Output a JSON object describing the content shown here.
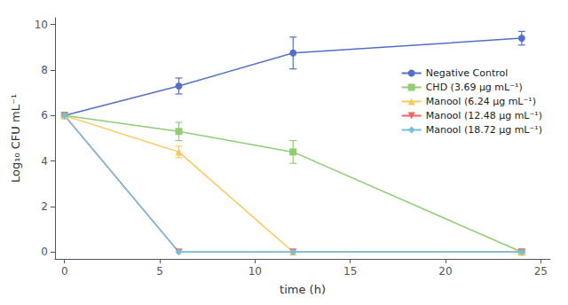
{
  "chart_data": {
    "type": "line",
    "xlabel": "time (h)",
    "ylabel": "Log₁₀ CFU mL⁻¹",
    "xlim": [
      -0.5,
      25.5
    ],
    "ylim": [
      -0.3,
      10.3
    ],
    "xticks": [
      0,
      5,
      10,
      15,
      20,
      25
    ],
    "yticks": [
      0,
      2,
      4,
      6,
      8,
      10
    ],
    "grid": false,
    "legend": "upper right",
    "series": [
      {
        "name": "Negative Control",
        "x": [
          0,
          6,
          12,
          24
        ],
        "values": [
          6.0,
          7.3,
          8.75,
          9.4
        ],
        "yerr": [
          0.0,
          0.35,
          0.7,
          0.3
        ],
        "marker": "circle"
      },
      {
        "name": "CHD (3.69 µg mL⁻¹)",
        "x": [
          0,
          6,
          12,
          24
        ],
        "values": [
          6.0,
          5.3,
          4.4,
          0.0
        ],
        "yerr": [
          0.0,
          0.4,
          0.5,
          0.0
        ],
        "marker": "square"
      },
      {
        "name": "Manool (6.24 µg mL⁻¹)",
        "x": [
          0,
          6,
          12,
          24
        ],
        "values": [
          6.0,
          4.4,
          0.0,
          0.0
        ],
        "yerr": [
          0.0,
          0.25,
          0.0,
          0.0
        ],
        "marker": "triangle_up"
      },
      {
        "name": "Manool (12.48 µg mL⁻¹)",
        "x": [
          0,
          6,
          12,
          24
        ],
        "values": [
          6.0,
          0.0,
          0.0,
          0.0
        ],
        "yerr": [
          0.0,
          0.0,
          0.0,
          0.0
        ],
        "marker": "triangle_down"
      },
      {
        "name": "Manool (18.72 µg mL⁻¹)",
        "x": [
          0,
          6,
          12,
          24
        ],
        "values": [
          6.0,
          0.0,
          0.0,
          0.0
        ],
        "yerr": [
          0.0,
          0.0,
          0.0,
          0.0
        ],
        "marker": "diamond"
      }
    ]
  }
}
